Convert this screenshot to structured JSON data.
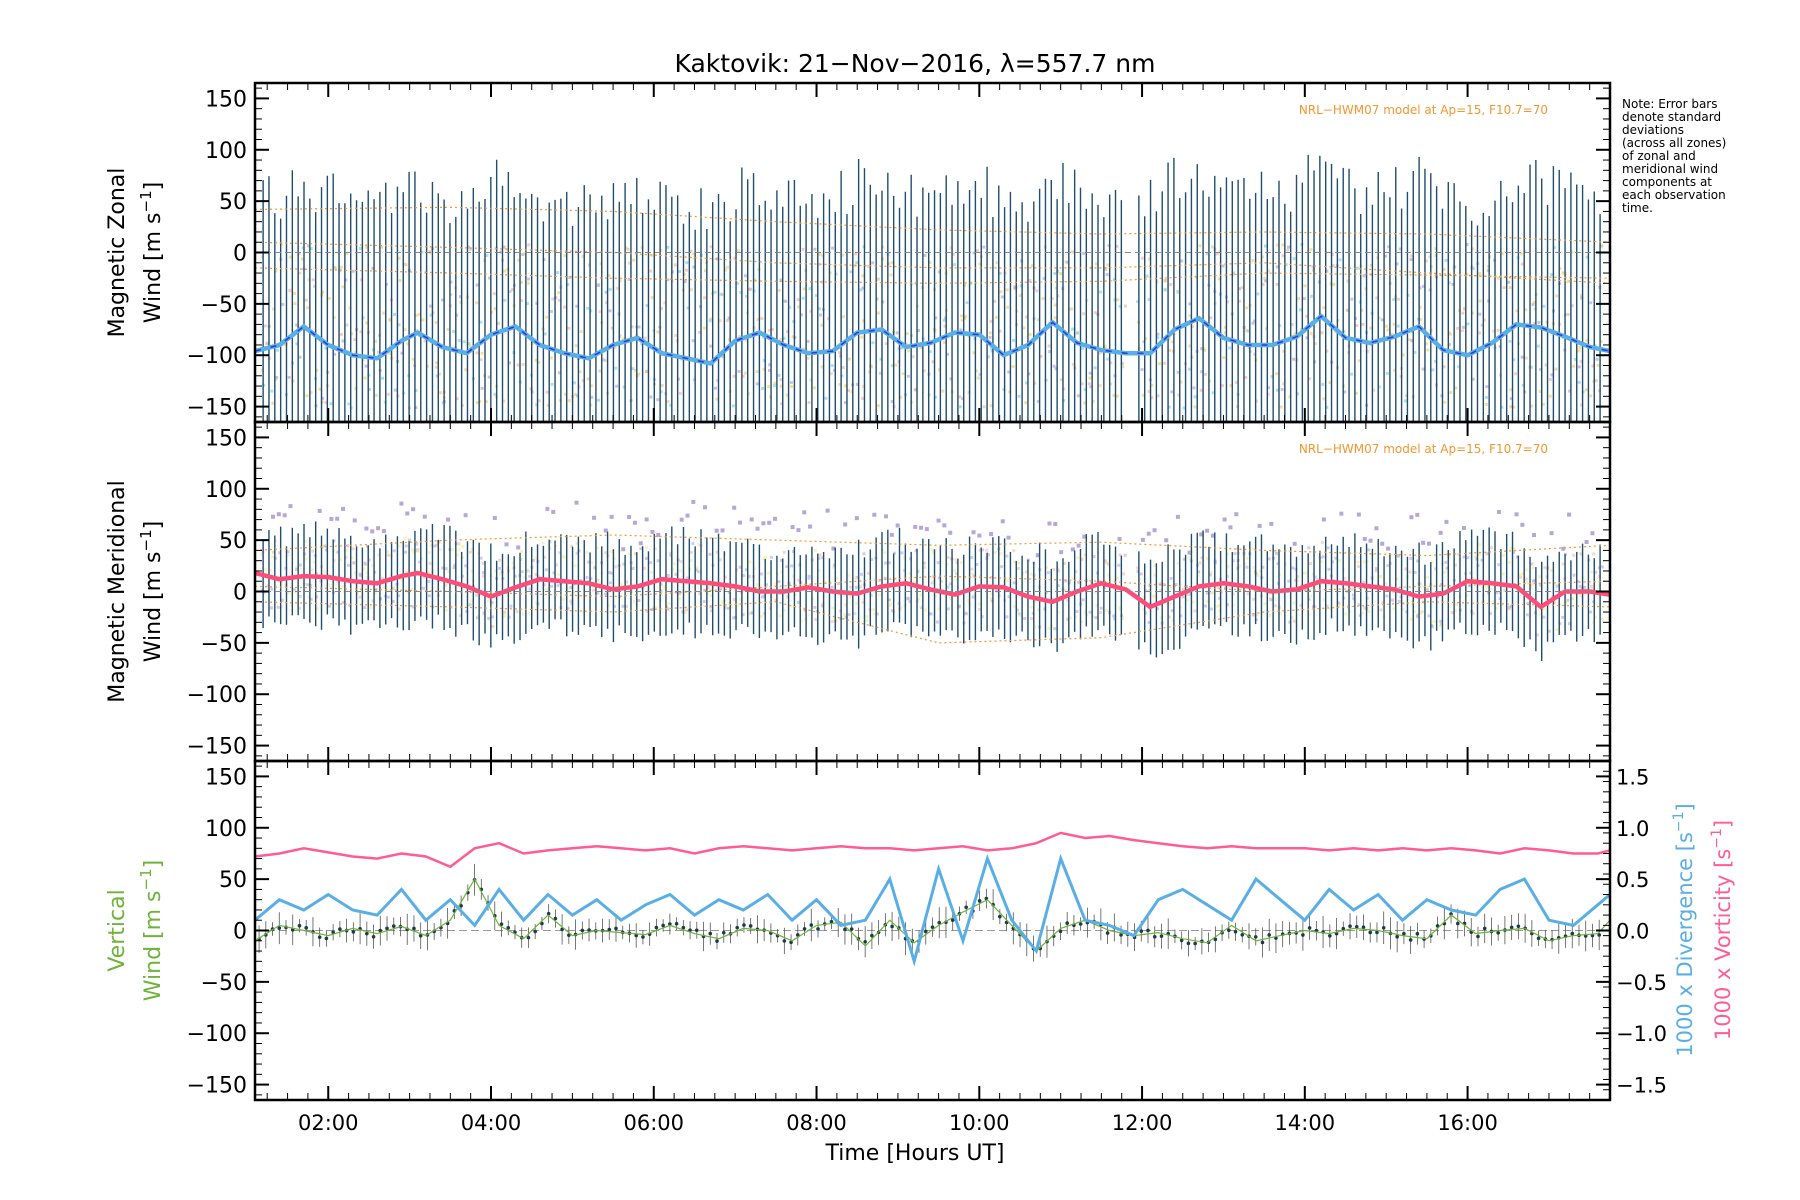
{
  "chart_data": {
    "type": "line",
    "title": "Kaktovik: 21−Nov−2016, λ=557.7 nm",
    "xlabel": "Time [Hours UT]",
    "x_range_hours": [
      1.1,
      17.75
    ],
    "x_ticks": [
      {
        "hour": 2,
        "label": "02:00"
      },
      {
        "hour": 4,
        "label": "04:00"
      },
      {
        "hour": 6,
        "label": "06:00"
      },
      {
        "hour": 8,
        "label": "08:00"
      },
      {
        "hour": 10,
        "label": "10:00"
      },
      {
        "hour": 12,
        "label": "12:00"
      },
      {
        "hour": 14,
        "label": "14:00"
      },
      {
        "hour": 16,
        "label": "16:00"
      }
    ],
    "note": [
      "Note: Error bars",
      "denote standard",
      "deviations",
      "(across all zones)",
      "of zonal and",
      "meridional wind",
      "components at",
      "each observation",
      "time."
    ],
    "colors": {
      "zonal_line": "#2b3bd6",
      "zonal_line_light": "#5aaee6",
      "meridional_line": "#ff4d7a",
      "vertical_line": "#6fb33a",
      "divergence": "#5aaee6",
      "vorticity": "#ff5c93",
      "errorbar": "#1f4e6e",
      "model": "#f5962f"
    },
    "panels": [
      {
        "id": "zonal",
        "ylabel_line1": "Magnetic Zonal",
        "ylabel_line2": "Wind [m s",
        "ylim": [
          -165,
          165
        ],
        "yticks": [
          -150,
          -100,
          -50,
          0,
          50,
          100,
          150
        ],
        "model_label": "NRL−HWM07 model at Ap=15, F10.7=70",
        "series": [
          {
            "x": [
              1.1,
              1.4,
              1.7,
              2.0,
              2.3,
              2.6,
              2.9,
              3.1,
              3.4,
              3.7,
              4.0,
              4.3,
              4.6,
              4.9,
              5.2,
              5.5,
              5.8,
              6.1,
              6.4,
              6.7,
              7.0,
              7.3,
              7.6,
              7.9,
              8.2,
              8.5,
              8.8,
              9.1,
              9.4,
              9.7,
              10.0,
              10.3,
              10.6,
              10.9,
              11.2,
              11.5,
              11.8,
              12.1,
              12.4,
              12.7,
              13.0,
              13.3,
              13.6,
              13.9,
              14.2,
              14.5,
              14.8,
              15.1,
              15.4,
              15.7,
              16.0,
              16.3,
              16.6,
              16.9,
              17.2,
              17.5,
              17.75
            ],
            "y": [
              -96,
              -90,
              -72,
              -90,
              -100,
              -103,
              -86,
              -78,
              -92,
              -98,
              -80,
              -72,
              -90,
              -98,
              -103,
              -90,
              -83,
              -98,
              -103,
              -108,
              -86,
              -78,
              -90,
              -98,
              -96,
              -78,
              -75,
              -92,
              -88,
              -78,
              -80,
              -100,
              -90,
              -68,
              -88,
              -95,
              -98,
              -98,
              -75,
              -64,
              -83,
              -90,
              -90,
              -82,
              -62,
              -83,
              -88,
              -82,
              -72,
              -95,
              -100,
              -88,
              -70,
              -73,
              -82,
              -92,
              -96
            ]
          }
        ],
        "model_curves": [
          {
            "x": [
              1.1,
              3.5,
              5.5,
              7.5,
              9.5,
              11.5,
              13.5,
              15.5,
              17.75
            ],
            "y": [
              42,
              44,
              40,
              30,
              22,
              18,
              20,
              18,
              10
            ]
          },
          {
            "x": [
              1.1,
              3.5,
              5.5,
              7.5,
              9.5,
              11.5,
              13.5,
              15.5,
              17.75
            ],
            "y": [
              10,
              5,
              0,
              -10,
              -15,
              -15,
              -10,
              -20,
              -30
            ]
          },
          {
            "x": [
              1.1,
              3.5,
              5.5,
              7.5,
              9.5,
              11.5,
              13.5,
              15.5,
              17.75
            ],
            "y": [
              -15,
              -20,
              -25,
              -28,
              -30,
              -28,
              -20,
              -22,
              -25
            ]
          }
        ]
      },
      {
        "id": "meridional",
        "ylabel_line1": "Magnetic Meridional",
        "ylabel_line2": "Wind [m s",
        "ylim": [
          -165,
          165
        ],
        "yticks": [
          -150,
          -100,
          -50,
          0,
          50,
          100,
          150
        ],
        "model_label": "NRL−HWM07 model at Ap=15, F10.7=70",
        "series": [
          {
            "x": [
              1.1,
              1.4,
              1.7,
              2.0,
              2.3,
              2.6,
              2.9,
              3.1,
              3.4,
              3.7,
              4.0,
              4.3,
              4.6,
              4.9,
              5.2,
              5.5,
              5.8,
              6.1,
              6.4,
              6.7,
              7.0,
              7.3,
              7.6,
              7.9,
              8.2,
              8.5,
              8.8,
              9.1,
              9.4,
              9.7,
              10.0,
              10.3,
              10.6,
              10.9,
              11.2,
              11.5,
              11.8,
              12.1,
              12.4,
              12.7,
              13.0,
              13.3,
              13.6,
              13.9,
              14.2,
              14.5,
              14.8,
              15.1,
              15.4,
              15.7,
              16.0,
              16.3,
              16.6,
              16.9,
              17.2,
              17.5,
              17.75
            ],
            "y": [
              18,
              12,
              15,
              14,
              10,
              8,
              15,
              18,
              12,
              5,
              -5,
              4,
              12,
              10,
              8,
              2,
              5,
              12,
              10,
              8,
              5,
              0,
              0,
              4,
              0,
              -2,
              5,
              8,
              2,
              -3,
              5,
              4,
              -5,
              -10,
              0,
              8,
              2,
              -15,
              -5,
              5,
              8,
              5,
              0,
              2,
              10,
              8,
              5,
              2,
              -5,
              -2,
              10,
              8,
              5,
              -15,
              0,
              0,
              -3
            ]
          }
        ],
        "model_curves": [
          {
            "x": [
              1.1,
              3.5,
              5.5,
              7.5,
              9.5,
              11.5,
              13.5,
              15.5,
              17.75
            ],
            "y": [
              40,
              50,
              55,
              50,
              45,
              48,
              40,
              35,
              45
            ]
          },
          {
            "x": [
              1.1,
              3.5,
              5.5,
              7.5,
              9.5,
              11.5,
              13.5,
              15.5,
              17.75
            ],
            "y": [
              -10,
              -15,
              -20,
              -10,
              -50,
              -45,
              -20,
              -10,
              -15
            ]
          },
          {
            "x": [
              1.1,
              3.5,
              5.5,
              7.5,
              9.5,
              11.5,
              13.5,
              15.5,
              17.75
            ],
            "y": [
              5,
              0,
              -5,
              5,
              15,
              10,
              0,
              5,
              10
            ]
          }
        ]
      },
      {
        "id": "vertical",
        "ylabel_line1": "Vertical",
        "ylabel_line2": "Wind [m s",
        "ylim": [
          -165,
          165
        ],
        "yticks": [
          -150,
          -100,
          -50,
          0,
          50,
          100,
          150
        ],
        "right_axis": {
          "ylim": [
            -1.65,
            1.65
          ],
          "yticks": [
            -1.5,
            -1.0,
            -0.5,
            0.0,
            0.5,
            1.0,
            1.5
          ],
          "ytick_labels": [
            "−1.5",
            "−1.0",
            "−0.5",
            "0.0",
            "0.5",
            "1.0",
            "1.5"
          ],
          "label_divergence": "1000 x Divergence [s",
          "label_vorticity": "1000 x Vorticity [s"
        },
        "series": [
          {
            "name": "Vertical Wind",
            "x": [
              1.1,
              1.4,
              1.7,
              2.0,
              2.3,
              2.6,
              2.9,
              3.2,
              3.5,
              3.8,
              4.1,
              4.4,
              4.7,
              5.0,
              5.3,
              5.6,
              5.9,
              6.2,
              6.5,
              6.8,
              7.1,
              7.4,
              7.7,
              8.0,
              8.3,
              8.6,
              8.9,
              9.2,
              9.5,
              9.8,
              10.1,
              10.4,
              10.7,
              11.0,
              11.3,
              11.6,
              11.9,
              12.2,
              12.5,
              12.8,
              13.1,
              13.4,
              13.7,
              14.0,
              14.3,
              14.6,
              14.9,
              15.2,
              15.5,
              15.8,
              16.1,
              16.4,
              16.7,
              17.0,
              17.3,
              17.6,
              17.75
            ],
            "y": [
              -10,
              5,
              0,
              -5,
              2,
              -3,
              4,
              -5,
              10,
              50,
              5,
              -8,
              15,
              -5,
              0,
              -2,
              -4,
              5,
              -3,
              -8,
              2,
              0,
              -10,
              5,
              8,
              -15,
              10,
              -12,
              5,
              18,
              30,
              5,
              -20,
              2,
              10,
              0,
              -5,
              -2,
              -8,
              -12,
              5,
              -10,
              -5,
              0,
              -3,
              2,
              0,
              -5,
              -8,
              15,
              -3,
              0,
              2,
              -10,
              -5,
              -3,
              10
            ]
          },
          {
            "name": "Divergence",
            "axis": "right",
            "x": [
              1.1,
              1.4,
              1.7,
              2.0,
              2.3,
              2.6,
              2.9,
              3.2,
              3.5,
              3.8,
              4.1,
              4.4,
              4.7,
              5.0,
              5.3,
              5.6,
              5.9,
              6.2,
              6.5,
              6.8,
              7.1,
              7.4,
              7.7,
              8.0,
              8.3,
              8.6,
              8.9,
              9.2,
              9.5,
              9.8,
              10.1,
              10.4,
              10.7,
              11.0,
              11.3,
              11.6,
              11.9,
              12.2,
              12.5,
              12.8,
              13.1,
              13.4,
              13.7,
              14.0,
              14.3,
              14.6,
              14.9,
              15.2,
              15.5,
              15.8,
              16.1,
              16.4,
              16.7,
              17.0,
              17.3,
              17.6,
              17.75
            ],
            "y": [
              0.1,
              0.3,
              0.2,
              0.35,
              0.2,
              0.15,
              0.4,
              0.1,
              0.3,
              0.05,
              0.4,
              0.1,
              0.35,
              0.15,
              0.3,
              0.1,
              0.25,
              0.35,
              0.15,
              0.3,
              0.2,
              0.35,
              0.1,
              0.3,
              0.05,
              0.1,
              0.5,
              -0.3,
              0.6,
              -0.1,
              0.7,
              0.1,
              -0.2,
              0.7,
              0.1,
              0.05,
              -0.05,
              0.3,
              0.4,
              0.25,
              0.1,
              0.5,
              0.3,
              0.1,
              0.4,
              0.2,
              0.35,
              0.1,
              0.3,
              0.2,
              0.15,
              0.4,
              0.5,
              0.1,
              0.05,
              0.25,
              0.35
            ]
          },
          {
            "name": "Vorticity",
            "axis": "right",
            "x": [
              1.1,
              1.4,
              1.7,
              2.0,
              2.3,
              2.6,
              2.9,
              3.2,
              3.5,
              3.8,
              4.1,
              4.4,
              4.7,
              5.0,
              5.3,
              5.6,
              5.9,
              6.2,
              6.5,
              6.8,
              7.1,
              7.4,
              7.7,
              8.0,
              8.3,
              8.6,
              8.9,
              9.2,
              9.5,
              9.8,
              10.1,
              10.4,
              10.7,
              11.0,
              11.3,
              11.6,
              11.9,
              12.2,
              12.5,
              12.8,
              13.1,
              13.4,
              13.7,
              14.0,
              14.3,
              14.6,
              14.9,
              15.2,
              15.5,
              15.8,
              16.1,
              16.4,
              16.7,
              17.0,
              17.3,
              17.6,
              17.75
            ],
            "y": [
              0.72,
              0.75,
              0.8,
              0.76,
              0.72,
              0.7,
              0.75,
              0.72,
              0.62,
              0.8,
              0.85,
              0.75,
              0.78,
              0.8,
              0.82,
              0.8,
              0.78,
              0.8,
              0.75,
              0.8,
              0.82,
              0.8,
              0.78,
              0.8,
              0.82,
              0.8,
              0.8,
              0.78,
              0.8,
              0.82,
              0.78,
              0.8,
              0.85,
              0.95,
              0.9,
              0.92,
              0.88,
              0.85,
              0.82,
              0.8,
              0.82,
              0.8,
              0.8,
              0.8,
              0.78,
              0.8,
              0.78,
              0.8,
              0.78,
              0.8,
              0.78,
              0.75,
              0.8,
              0.78,
              0.75,
              0.75,
              0.78
            ]
          }
        ]
      }
    ]
  }
}
